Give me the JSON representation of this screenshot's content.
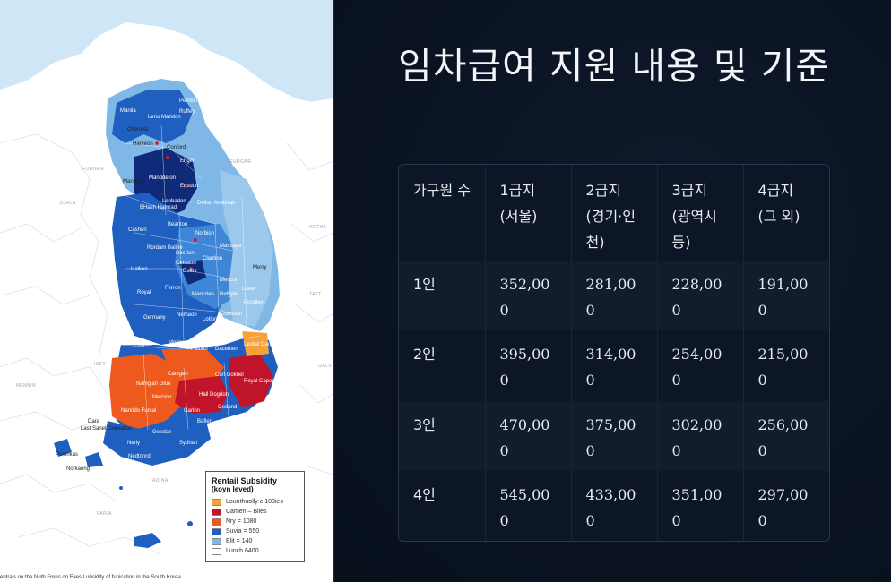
{
  "map": {
    "legend": {
      "title": "Rentail Subsidity",
      "subtitle": "(koyn leved)",
      "items": [
        {
          "label": "Lounthuolly c 100ies",
          "color": "#f5a23a"
        },
        {
          "label": "Camen – Blies",
          "color": "#c0142a"
        },
        {
          "label": "Nry = 1080",
          "color": "#ee5a1e"
        },
        {
          "label": "Suvia = 550",
          "color": "#1e5fbf"
        },
        {
          "label": "Elit = 140",
          "color": "#7fb8e6"
        },
        {
          "label": "Lunch 6400",
          "color": "#ffffff"
        }
      ]
    },
    "caption": "entrals on the Nuth Fores on Fees Lubsidity of funication in the South Korea",
    "region_labels": {
      "r1": "Manila",
      "r2": "Leno Maridon",
      "r3": "Ruffey",
      "r4": "Pembim",
      "r5": "Cheroda",
      "r6": "Hanfeon",
      "r7": "Conford",
      "r8": "Mandion",
      "r9": "Manddeton",
      "r10": "Engen",
      "r11": "Ensdon",
      "r12": "BHash Hamrad",
      "r13": "Leobadon",
      "r14": "Dellan Anadrian",
      "r15": "Cashen",
      "r16": "Rordam Baline",
      "r17": "Beanton",
      "r18": "Norbion",
      "r19": "Decrion",
      "r20": "Cetaaon",
      "r21": "Massage",
      "r22": "Halken",
      "r23": "Dulby",
      "r24": "Clantion",
      "r25": "Merry",
      "r26": "Royal",
      "r27": "Ferron",
      "r28": "Meccon",
      "r29": "Laver",
      "r30": "Mancdan",
      "r31": "Refyyle",
      "r32": "Germany",
      "r33": "Nemaon",
      "r34": "Lotlon",
      "r35": "Comstan",
      "r36": "Pondley",
      "r37": "Retanted",
      "r38": "Harpan",
      "r39": "Morian",
      "r40": "Pattion",
      "r41": "Dacenten",
      "r42": "Leolial Danhiol",
      "r43": "Camgen",
      "r44": "Curl Gokbel",
      "r45": "Royal Capertinen",
      "r46": "Namgian Gloo",
      "r47": "Mercion",
      "r48": "Hall Dogdon",
      "r49": "Gedand",
      "r50": "Nanrido Furcal",
      "r51": "Garlon",
      "r52": "Geedan",
      "r53": "Baflen",
      "r54": "Sydhan",
      "r55": "Nerly",
      "r56": "Nedtonrd",
      "r57": "Dara",
      "r58": "Last Sanel Celeration",
      "r59": "Pumnkas",
      "r60": "Norkaong"
    },
    "sea_labels": {
      "s1": "FORNER",
      "s2": "CEURGAR",
      "s3": "JORLA",
      "s4": "RETHA",
      "s5": "TATT",
      "s6": "ISEY",
      "s7": "UALS",
      "s8": "NENNIN",
      "s9": "FARIA",
      "s10": "ADINA"
    }
  },
  "content": {
    "title": "임차급여 지원 내용 및 기준",
    "table": {
      "headers": [
        "가구원 수",
        "1급지 (서울)",
        "2급지 (경기·인천)",
        "3급지 (광역시 등)",
        "4급지 (그 외)"
      ],
      "rows": [
        [
          "1인",
          "352,000",
          "281,000",
          "228,000",
          "191,000"
        ],
        [
          "2인",
          "395,000",
          "314,000",
          "254,000",
          "215,000"
        ],
        [
          "3인",
          "470,000",
          "375,000",
          "302,000",
          "256,000"
        ],
        [
          "4인",
          "545,000",
          "433,000",
          "351,000",
          "297,000"
        ]
      ]
    }
  }
}
